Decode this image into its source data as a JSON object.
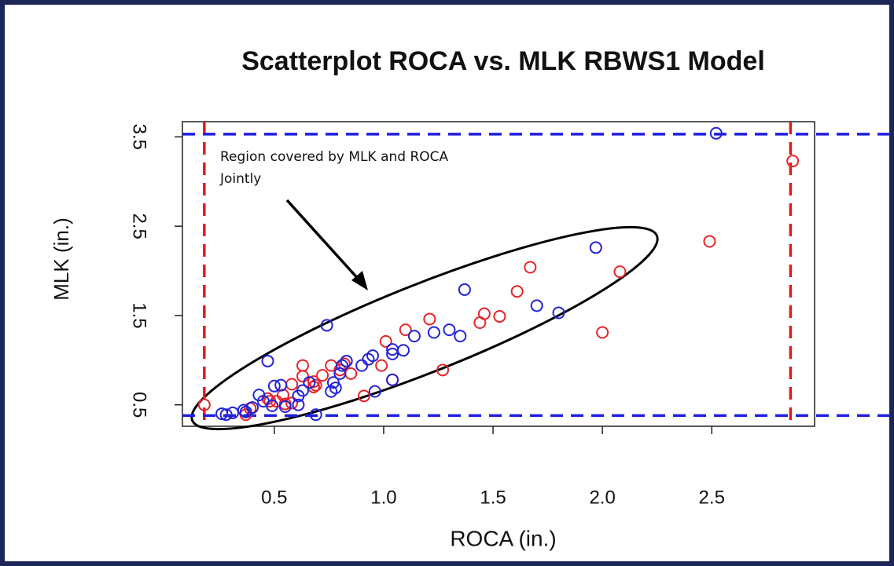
{
  "chart_data": {
    "type": "scatter",
    "title": "Scatterplot ROCA vs. MLK RBWS1 Model",
    "xlabel": "ROCA (in.)",
    "ylabel": "MLK (in.)",
    "annotation": [
      "Region covered by MLK and ROCA",
      "Jointly"
    ],
    "xlim": [
      0.08,
      2.97
    ],
    "ylim": [
      0.26,
      3.67
    ],
    "xticks": [
      0.5,
      {
        "value": 1,
        "label": "1.0"
      },
      1.5,
      {
        "value": 2,
        "label": "2.0"
      },
      2.5
    ],
    "yticks": [
      0.5,
      1.5,
      2.5,
      3.5
    ],
    "vlines": [
      {
        "value": 0.18,
        "color": "#e41a1c"
      },
      {
        "value": 2.86,
        "color": "#e41a1c"
      }
    ],
    "hlines": [
      {
        "value": 0.38,
        "color": "#1f1fe0"
      },
      {
        "value": 3.53,
        "color": "#1f1fe0"
      }
    ],
    "series": [
      {
        "color": "#e8242a",
        "x": [
          0.18,
          2.87,
          2.49,
          2.08,
          1.67,
          1.61,
          2.0,
          1.46,
          1.53,
          1.44,
          1.21,
          1.1,
          1.01,
          0.99,
          1.04,
          1.27,
          0.91,
          0.82,
          0.85,
          0.76,
          0.72,
          0.68,
          0.63,
          0.63,
          0.58,
          0.54,
          0.48,
          0.51,
          0.55,
          0.68,
          0.69,
          0.58,
          0.47,
          0.39,
          0.37,
          0.8
        ],
        "y": [
          0.5,
          3.23,
          2.33,
          1.99,
          2.04,
          1.77,
          1.31,
          1.52,
          1.49,
          1.42,
          1.46,
          1.34,
          1.21,
          0.94,
          0.78,
          0.89,
          0.6,
          0.96,
          0.85,
          0.94,
          0.83,
          0.76,
          0.94,
          0.82,
          0.73,
          0.61,
          0.54,
          0.54,
          0.51,
          0.7,
          0.72,
          0.52,
          0.57,
          0.46,
          0.39,
          0.89
        ]
      },
      {
        "color": "#2323d8",
        "x": [
          2.52,
          1.97,
          1.37,
          1.7,
          1.8,
          0.74,
          1.3,
          1.35,
          1.23,
          1.14,
          1.09,
          1.04,
          1.04,
          0.95,
          0.93,
          0.9,
          0.83,
          0.81,
          0.8,
          0.47,
          1.04,
          0.96,
          0.66,
          0.77,
          0.78,
          0.76,
          0.63,
          0.61,
          0.53,
          0.5,
          0.43,
          0.45,
          0.49,
          0.55,
          0.61,
          0.4,
          0.36,
          0.31,
          0.26,
          0.28,
          0.69,
          0.37
        ],
        "y": [
          3.54,
          2.26,
          1.79,
          1.61,
          1.53,
          1.39,
          1.34,
          1.27,
          1.31,
          1.27,
          1.11,
          1.12,
          1.07,
          1.05,
          1.01,
          0.94,
          0.99,
          0.94,
          0.85,
          0.99,
          0.78,
          0.65,
          0.75,
          0.75,
          0.69,
          0.65,
          0.66,
          0.6,
          0.72,
          0.71,
          0.61,
          0.54,
          0.49,
          0.48,
          0.5,
          0.47,
          0.44,
          0.41,
          0.4,
          0.39,
          0.39,
          0.42
        ]
      }
    ]
  }
}
